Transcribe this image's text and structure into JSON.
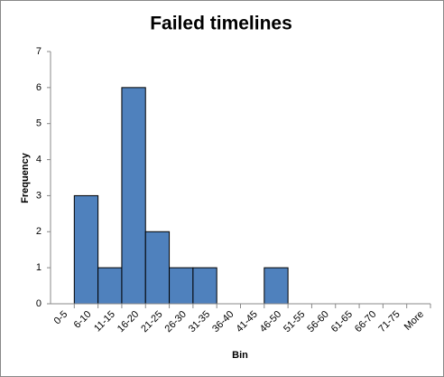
{
  "chart_data": {
    "type": "bar",
    "title": "Failed timelines",
    "x_label": "Bin",
    "y_label": "Frequency",
    "categories": [
      "0-5",
      "6-10",
      "11-15",
      "16-20",
      "21-25",
      "26-30",
      "31-35",
      "36-40",
      "41-45",
      "46-50",
      "51-55",
      "56-60",
      "61-65",
      "66-70",
      "71-75",
      "More"
    ],
    "values": [
      0,
      3,
      1,
      6,
      2,
      1,
      1,
      0,
      0,
      1,
      0,
      0,
      0,
      0,
      0,
      0
    ],
    "color": "#4f81bd",
    "ylim": [
      0,
      7
    ],
    "yticks": [
      0,
      1,
      2,
      3,
      4,
      5,
      6,
      7
    ],
    "grid": false
  }
}
